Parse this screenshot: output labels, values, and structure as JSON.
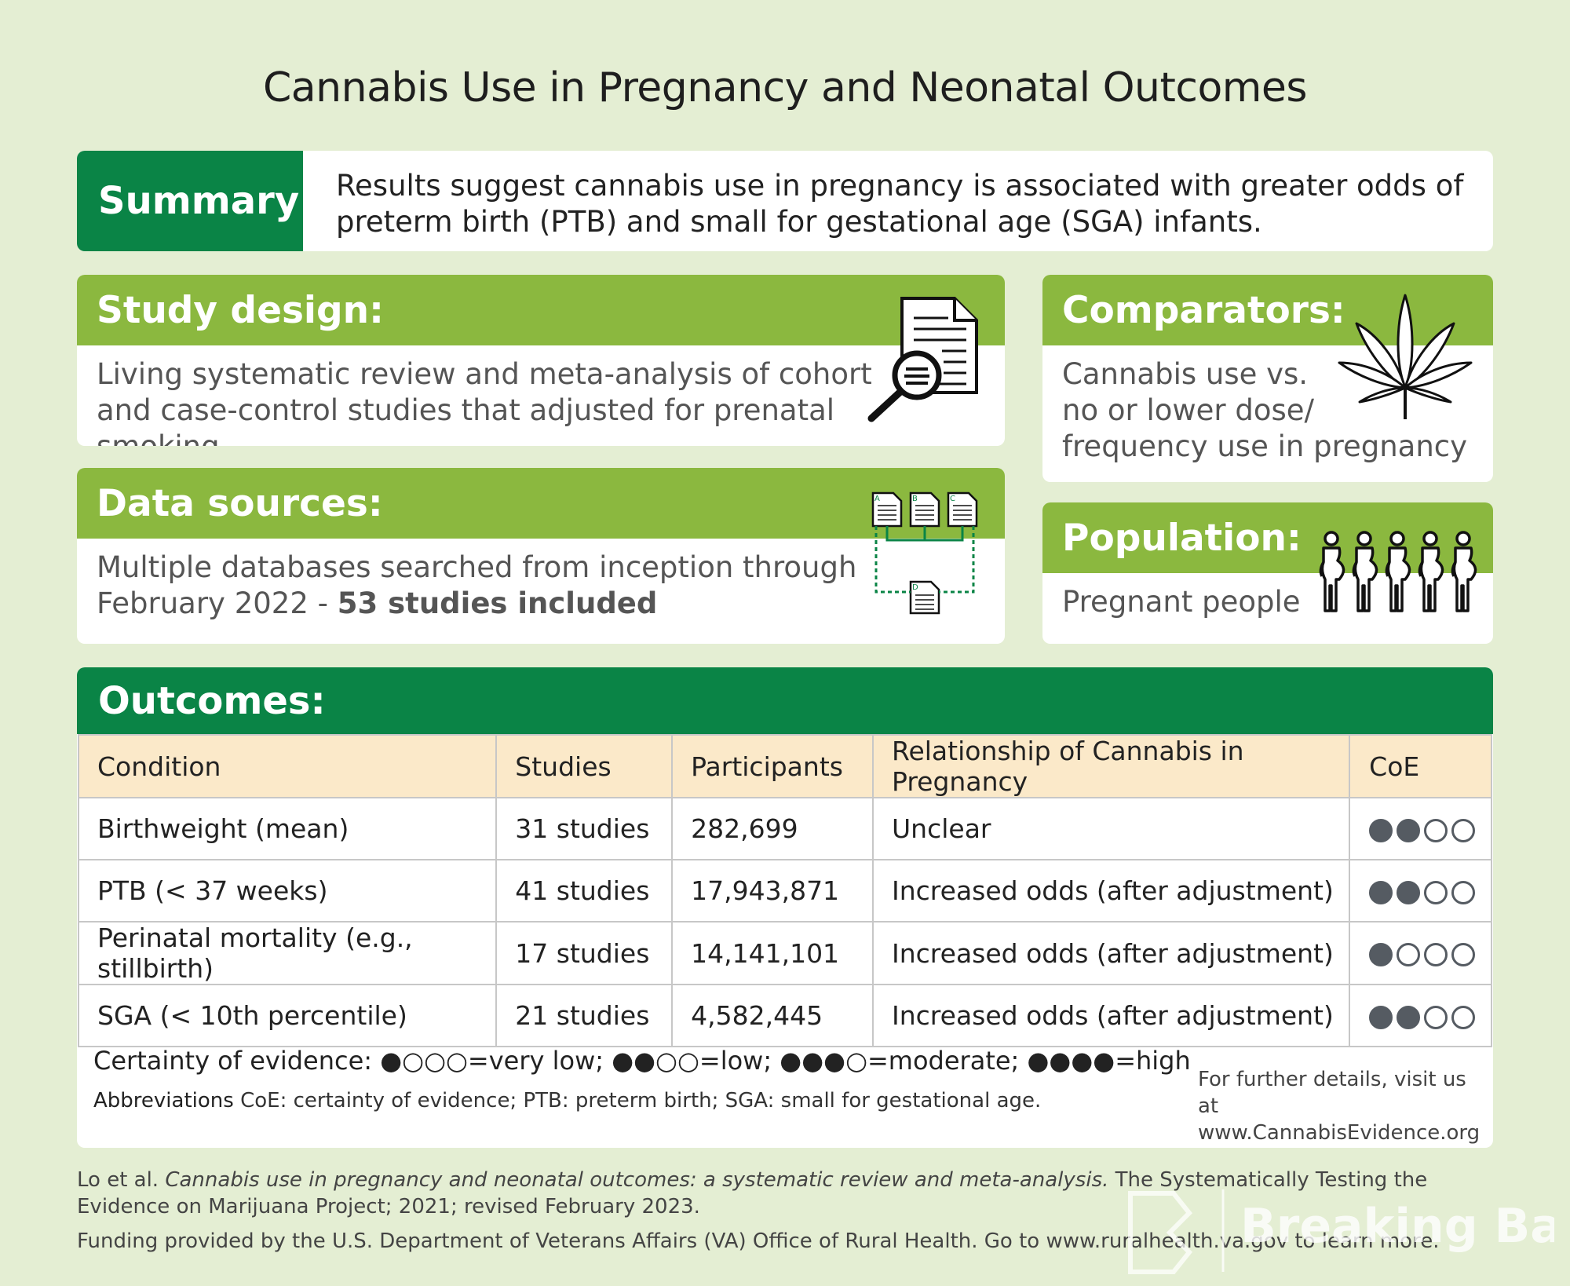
{
  "title": "Cannabis Use in Pregnancy and Neonatal Outcomes",
  "summary": {
    "label": "Summary:",
    "text": "Results suggest cannabis use in pregnancy is associated with greater odds of preterm birth (PTB) and small for gestational age (SGA) infants."
  },
  "study_design": {
    "label": "Study design:",
    "text": "Living systematic review and meta-analysis of cohort and case-control studies that adjusted for prenatal smoking",
    "icon": "document-magnifier-icon"
  },
  "comparators": {
    "label": "Comparators:",
    "text_line1": "Cannabis use vs.",
    "text_line2": "no or lower dose/",
    "text_line3": "frequency use in pregnancy",
    "icon": "cannabis-leaf-icon"
  },
  "data_sources": {
    "label": "Data sources:",
    "text_line1": "Multiple databases searched from inception through",
    "text_line2_prefix": "February 2022 - ",
    "text_line2_bold": "53 studies included",
    "icon": "database-flow-icon",
    "doc_labels": [
      "A",
      "B",
      "C",
      "D"
    ]
  },
  "population": {
    "label": "Population:",
    "text": "Pregnant people",
    "icon": "pregnant-people-icon"
  },
  "outcomes": {
    "label": "Outcomes:",
    "headers": [
      "Condition",
      "Studies",
      "Participants",
      "Relationship of Cannabis in Pregnancy",
      "CoE"
    ],
    "rows": [
      {
        "condition": "Birthweight (mean)",
        "studies": "31 studies",
        "participants": "282,699",
        "relationship": "Unclear",
        "coe": 2
      },
      {
        "condition": "PTB (< 37 weeks)",
        "studies": "41 studies",
        "participants": "17,943,871",
        "relationship": "Increased odds (after adjustment)",
        "coe": 2
      },
      {
        "condition": "Perinatal mortality (e.g., stillbirth)",
        "studies": "17 studies",
        "participants": "14,141,101",
        "relationship": "Increased odds (after adjustment)",
        "coe": 1
      },
      {
        "condition": "SGA (< 10th percentile)",
        "studies": "21 studies",
        "participants": "4,582,445",
        "relationship": "Increased odds (after adjustment)",
        "coe": 2
      }
    ],
    "legend": {
      "prefix": "Certainty of evidence:",
      "very_low_symbol": "●○○○",
      "very_low": "=very low;",
      "low_symbol": "●●○○",
      "low": "=low;",
      "moderate_symbol": "●●●○",
      "moderate": "=moderate;",
      "high_symbol": "●●●●",
      "high": "=high"
    },
    "abbr_key": "Abbreviations",
    "abbr_text": " CoE: certainty of evidence; PTB: preterm birth; SGA: small for gestational age.",
    "visit_line1": "For further details, visit us at",
    "visit_line2": "www.CannabisEvidence.org"
  },
  "citation": {
    "authors": "Lo et al. ",
    "title_italic": "Cannabis use in pregnancy and neonatal outcomes: a systematic review and meta-analysis.",
    "rest": " The Systematically Testing the Evidence on Marijuana Project; 2021; revised February 2023."
  },
  "funding": "Funding provided by the U.S. Department of Veterans Affairs (VA) Office of Rural Health. Go to www.ruralhealth.va.gov to learn more.",
  "watermark": "Breaking Bad",
  "colors": {
    "background": "#e4eed3",
    "dark_green": "#0a8446",
    "light_green": "#8bb83f",
    "table_header": "#fbe9c9"
  }
}
